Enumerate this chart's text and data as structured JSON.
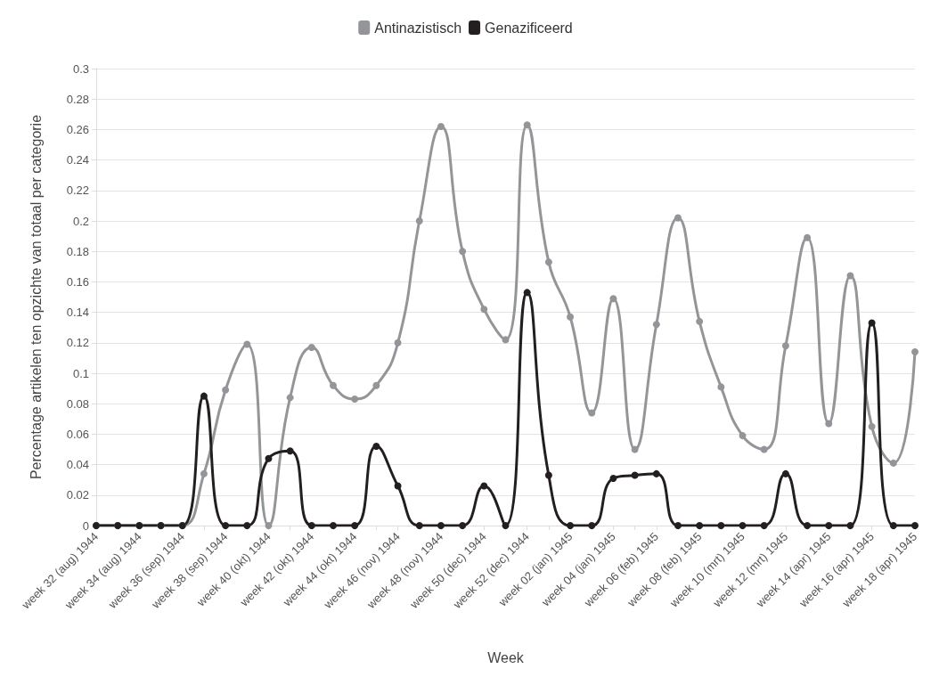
{
  "chart_data": {
    "type": "line",
    "xlabel": "Week",
    "ylabel": "Percentage artikelen ten opzichte van totaal per categorie",
    "categories": [
      "week 32 (aug) 1944",
      null,
      "week 34 (aug) 1944",
      null,
      "week 36 (sep) 1944",
      null,
      "week 38 (sep) 1944",
      null,
      "week 40 (okt) 1944",
      null,
      "week 42 (okt) 1944",
      null,
      "week 44 (okt) 1944",
      null,
      "week 46 (nov) 1944",
      null,
      "week 48 (nov) 1944",
      null,
      "week 50 (dec) 1944",
      null,
      "week 52 (dec) 1944",
      null,
      "week 02 (jan) 1945",
      null,
      "week 04 (jan) 1945",
      null,
      "week 06 (feb) 1945",
      null,
      "week 08 (feb) 1945",
      null,
      "week 10 (mrt) 1945",
      null,
      "week 12 (mrt) 1945",
      null,
      "week 14 (apr) 1945",
      null,
      "week 16 (apr) 1945",
      null,
      "week 18 (apr) 1945"
    ],
    "series": [
      {
        "name": "Antinazistisch",
        "color": "#939598",
        "values": [
          0,
          0,
          0,
          0,
          0,
          0.034,
          0.089,
          0.119,
          0,
          0.084,
          0.117,
          0.092,
          0.083,
          0.092,
          0.12,
          0.2,
          0.262,
          0.18,
          0.142,
          0.122,
          0.263,
          0.173,
          0.137,
          0.074,
          0.149,
          0.05,
          0.132,
          0.202,
          0.134,
          0.091,
          0.059,
          0.05,
          0.118,
          0.189,
          0.067,
          0.164,
          0.065,
          0.041,
          0.114
        ]
      },
      {
        "name": "Genazificeerd",
        "color": "#231f20",
        "values": [
          0,
          0,
          0,
          0,
          0,
          0.085,
          0,
          0,
          0.044,
          0.049,
          0,
          0,
          0,
          0.052,
          0.026,
          0,
          0,
          0,
          0.026,
          0,
          0.153,
          0.033,
          0,
          0,
          0.031,
          0.033,
          0.034,
          0,
          0,
          0,
          0,
          0,
          0.034,
          0,
          0,
          0,
          0.133,
          0,
          0
        ]
      }
    ],
    "ylim": [
      0,
      0.3
    ],
    "yticks": [
      0,
      0.02,
      0.04,
      0.06,
      0.08,
      0.1,
      0.12,
      0.14,
      0.16,
      0.18,
      0.2,
      0.22,
      0.24,
      0.26,
      0.28,
      0.3
    ],
    "grid": "y",
    "legend": "top",
    "marker": "circle",
    "line_style": "solid"
  }
}
